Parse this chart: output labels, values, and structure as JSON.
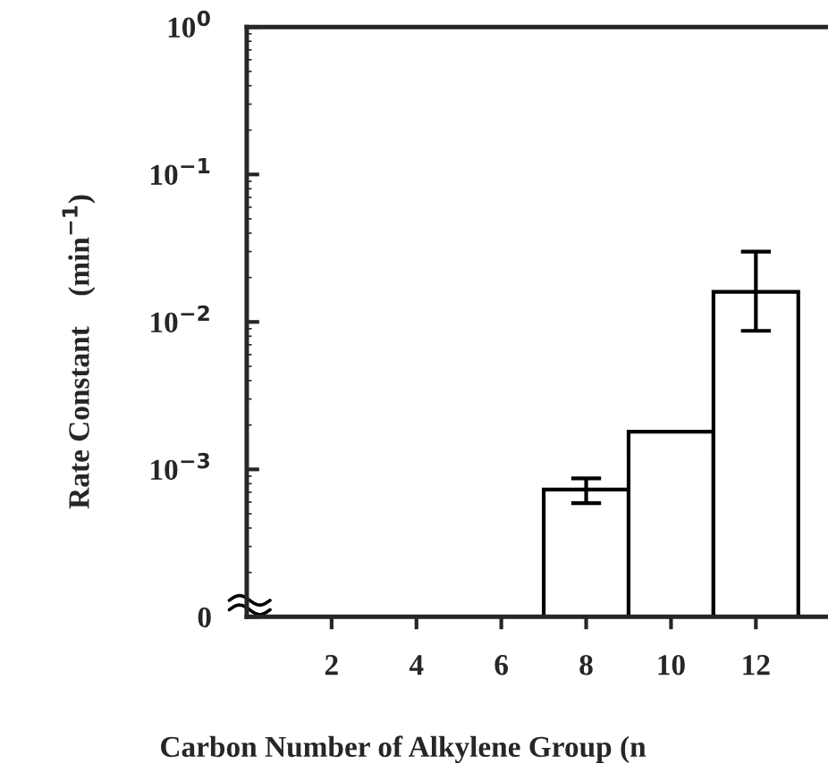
{
  "chart_data": {
    "type": "bar",
    "xlabel": "Carbon Number of Alkylene Group (n",
    "ylabel": "Rate Constant    (min$^{−1}$)",
    "x": [
      8,
      10,
      12
    ],
    "values": [
      0.00073,
      0.0018,
      0.016
    ],
    "errors": [
      [
        0.00059,
        0.00087
      ],
      null,
      [
        0.0087,
        0.03
      ]
    ],
    "color": "#ffffff",
    "log": true,
    "xlim": [
      0,
      13.7
    ],
    "xticks": [
      2,
      4,
      6,
      8,
      10,
      12
    ],
    "ylim": [
      0.0001,
      1
    ],
    "yticks": [
      {
        "value": 0.0001,
        "label": "0"
      },
      {
        "value": 0.001,
        "label": "10$^{−3}$"
      },
      {
        "value": 0.01,
        "label": "10$^{−2}$"
      },
      {
        "value": 0.1,
        "label": "10$^{−1}$"
      },
      {
        "value": 1,
        "label": "10$^{0}$"
      }
    ],
    "grid": false,
    "legend": false
  }
}
